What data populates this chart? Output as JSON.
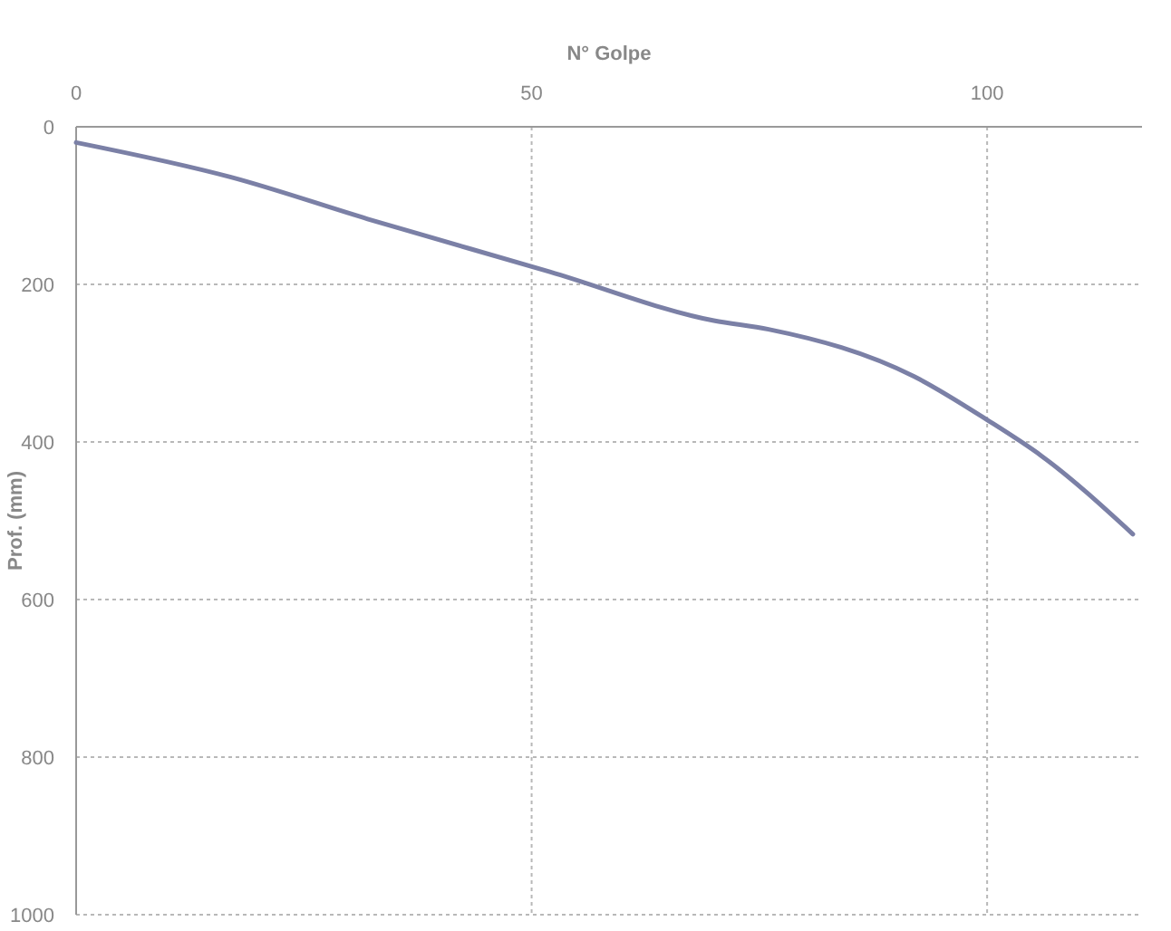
{
  "chart_data": {
    "type": "line",
    "xlabel": "N° Golpe",
    "ylabel": "Prof. (mm)",
    "xlim": [
      0,
      117
    ],
    "xticks": [
      0,
      50,
      100
    ],
    "ylim": [
      1000,
      0
    ],
    "yticks": [
      0,
      200,
      400,
      600,
      800,
      1000
    ],
    "grid": true,
    "marker": "none",
    "line_style": "solid",
    "series": [
      {
        "color": "#7b80a6",
        "x": [
          0,
          17,
          32,
          52,
          70,
          76,
          92,
          100,
          106,
          116
        ],
        "values": [
          20,
          64,
          117,
          184,
          246,
          257,
          317,
          372,
          418,
          517
        ]
      }
    ]
  }
}
